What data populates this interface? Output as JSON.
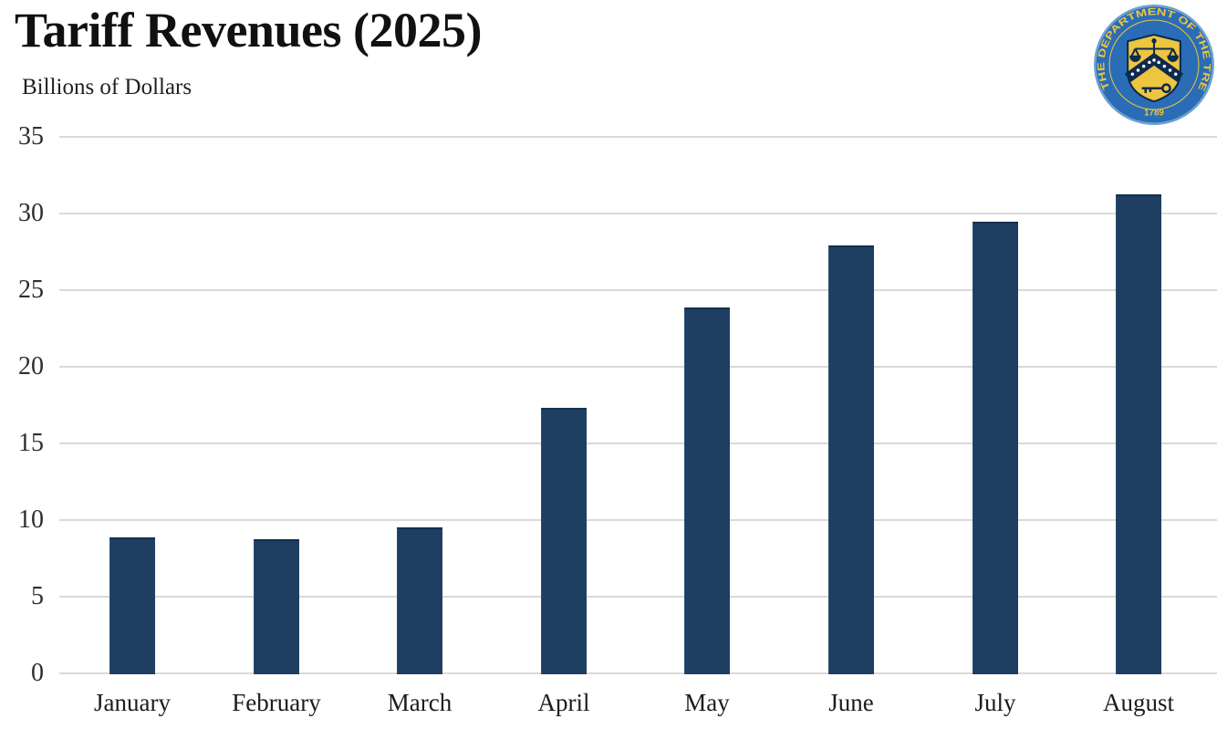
{
  "header": {
    "title": "Tariff Revenues (2025)",
    "subtitle": "Billions of Dollars"
  },
  "seal": {
    "ring_text": "THE DEPARTMENT OF THE TREASURY",
    "year": "1789",
    "colors": {
      "disc_blue": "#2a6db6",
      "rim_blue": "#6da2cf",
      "gold": "#edc53f",
      "navy": "#0e2a4d"
    }
  },
  "chart_data": {
    "type": "bar",
    "title": "Tariff Revenues (2025)",
    "ylabel": "Billions of Dollars",
    "xlabel": "",
    "categories": [
      "January",
      "February",
      "March",
      "April",
      "May",
      "June",
      "July",
      "August"
    ],
    "values": [
      8.9,
      8.8,
      9.6,
      17.4,
      23.9,
      28.0,
      29.5,
      31.3
    ],
    "ylim": [
      0,
      35
    ],
    "yticks": [
      0,
      5,
      10,
      15,
      20,
      25,
      30,
      35
    ],
    "grid": true,
    "legend_position": "none",
    "bar_color": "#1e3f62",
    "gridline_color": "#d9d9d9"
  }
}
